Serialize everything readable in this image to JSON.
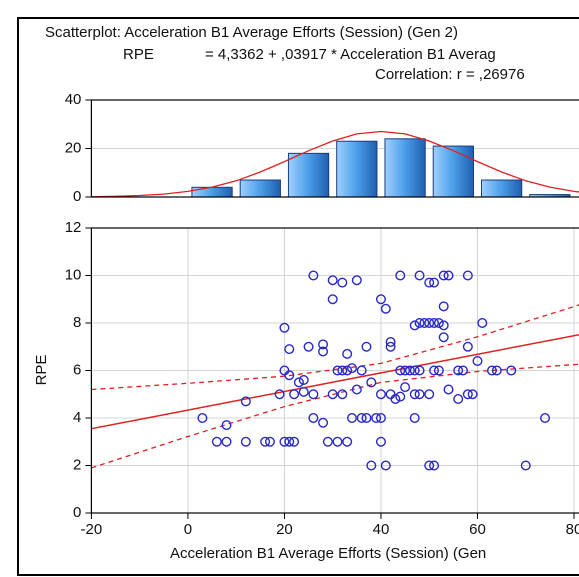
{
  "chart_data": [
    {
      "type": "histogram",
      "bins": [
        -20,
        -10,
        0,
        10,
        20,
        30,
        40,
        50,
        60,
        70,
        80
      ],
      "counts": [
        0,
        0,
        4,
        7,
        18,
        23,
        24,
        21,
        7,
        1
      ],
      "color": "#4a9ee8",
      "curve": {
        "color": "#e02020",
        "x": [
          -20,
          -15,
          -10,
          -5,
          0,
          5,
          10,
          15,
          20,
          25,
          30,
          35,
          40,
          45,
          50,
          55,
          60,
          65,
          70,
          75,
          80,
          85,
          90
        ],
        "values": [
          0.1,
          0.3,
          0.6,
          1.2,
          2.3,
          4.1,
          6.7,
          10.3,
          14.6,
          19.1,
          23.1,
          26.0,
          27,
          26.0,
          23.1,
          19.1,
          14.6,
          10.3,
          6.7,
          4.1,
          2.3,
          1.2,
          0.6
        ]
      },
      "xlim": [
        -20,
        100
      ],
      "ylim": [
        0,
        40
      ],
      "yticks": [
        0,
        20,
        40
      ],
      "grid": true
    },
    {
      "type": "scatter",
      "title": "Scatterplot: Acceleration B1 Average Efforts (Session) (Gen 2)",
      "equation_label": "RPE",
      "equation": "= 4,3362 + ,03917 * Acceleration B1 Averag",
      "correlation": "Correlation: r = ,26976",
      "x_label": "Acceleration B1 Average Efforts (Session) (Gen",
      "y_label": "RPE",
      "color": "#2828c8",
      "x": [
        26,
        30,
        32,
        35,
        44,
        48,
        50,
        51,
        53,
        54,
        58,
        30,
        40,
        41,
        53,
        20,
        47,
        48,
        49,
        50,
        51,
        52,
        53,
        61,
        25,
        28,
        28,
        37,
        42,
        42,
        53,
        58,
        21,
        20,
        21,
        23,
        24,
        31,
        32,
        33,
        34,
        36,
        33,
        38,
        44,
        45,
        46,
        47,
        48,
        52,
        51,
        56,
        57,
        60,
        63,
        64,
        67,
        19,
        22,
        24,
        26,
        30,
        32,
        35,
        40,
        42,
        43,
        44,
        45,
        47,
        48,
        50,
        54,
        56,
        58,
        59,
        3,
        26,
        28,
        34,
        36,
        37,
        39,
        40,
        47,
        74,
        8,
        12,
        6,
        8,
        12,
        16,
        20,
        21,
        22,
        29,
        31,
        33,
        40,
        17,
        38,
        41,
        50,
        51,
        70
      ],
      "y": [
        10,
        9.8,
        9.7,
        9.8,
        10,
        10,
        9.7,
        9.7,
        10,
        10,
        10,
        9,
        9,
        8.6,
        8.7,
        7.8,
        7.9,
        8,
        8,
        8,
        8,
        8,
        7.9,
        8,
        7,
        7.1,
        6.8,
        7,
        7.2,
        7,
        7.4,
        7,
        6.9,
        6,
        5.8,
        5.5,
        5.6,
        6,
        6,
        6,
        6.1,
        6,
        6.7,
        5.5,
        6,
        6,
        6,
        6,
        6,
        6,
        6,
        6,
        6,
        6.4,
        6,
        6,
        6,
        5,
        5,
        5.1,
        5,
        5,
        5,
        5.2,
        5,
        5,
        4.8,
        4.9,
        5.3,
        5,
        5,
        5,
        5.2,
        4.8,
        5,
        5,
        4,
        4,
        3.8,
        4,
        4,
        4,
        4,
        4,
        4,
        4,
        3.7,
        4.7,
        3,
        3,
        3,
        3,
        3,
        3,
        3,
        3,
        3,
        3,
        3,
        3,
        2,
        2,
        2,
        2,
        2
      ],
      "fit": {
        "color": "#e02020",
        "x": [
          -20,
          100
        ],
        "values": [
          3.55,
          8.25
        ]
      },
      "band_upper": {
        "x": [
          -20,
          0,
          20,
          40,
          60,
          80,
          100
        ],
        "values": [
          5.2,
          5.46,
          5.76,
          6.3,
          7.42,
          8.69,
          10.0
        ]
      },
      "band_lower": {
        "x": [
          -20,
          0,
          20,
          40,
          60,
          80,
          100
        ],
        "values": [
          1.9,
          3.22,
          4.48,
          5.5,
          5.96,
          6.25,
          6.5
        ]
      },
      "xlim": [
        -20,
        100
      ],
      "xticks": [
        -20,
        0,
        20,
        40,
        60,
        80
      ],
      "ylim": [
        0,
        12
      ],
      "yticks": [
        0,
        2,
        4,
        6,
        8,
        10,
        12
      ],
      "grid": true
    }
  ]
}
